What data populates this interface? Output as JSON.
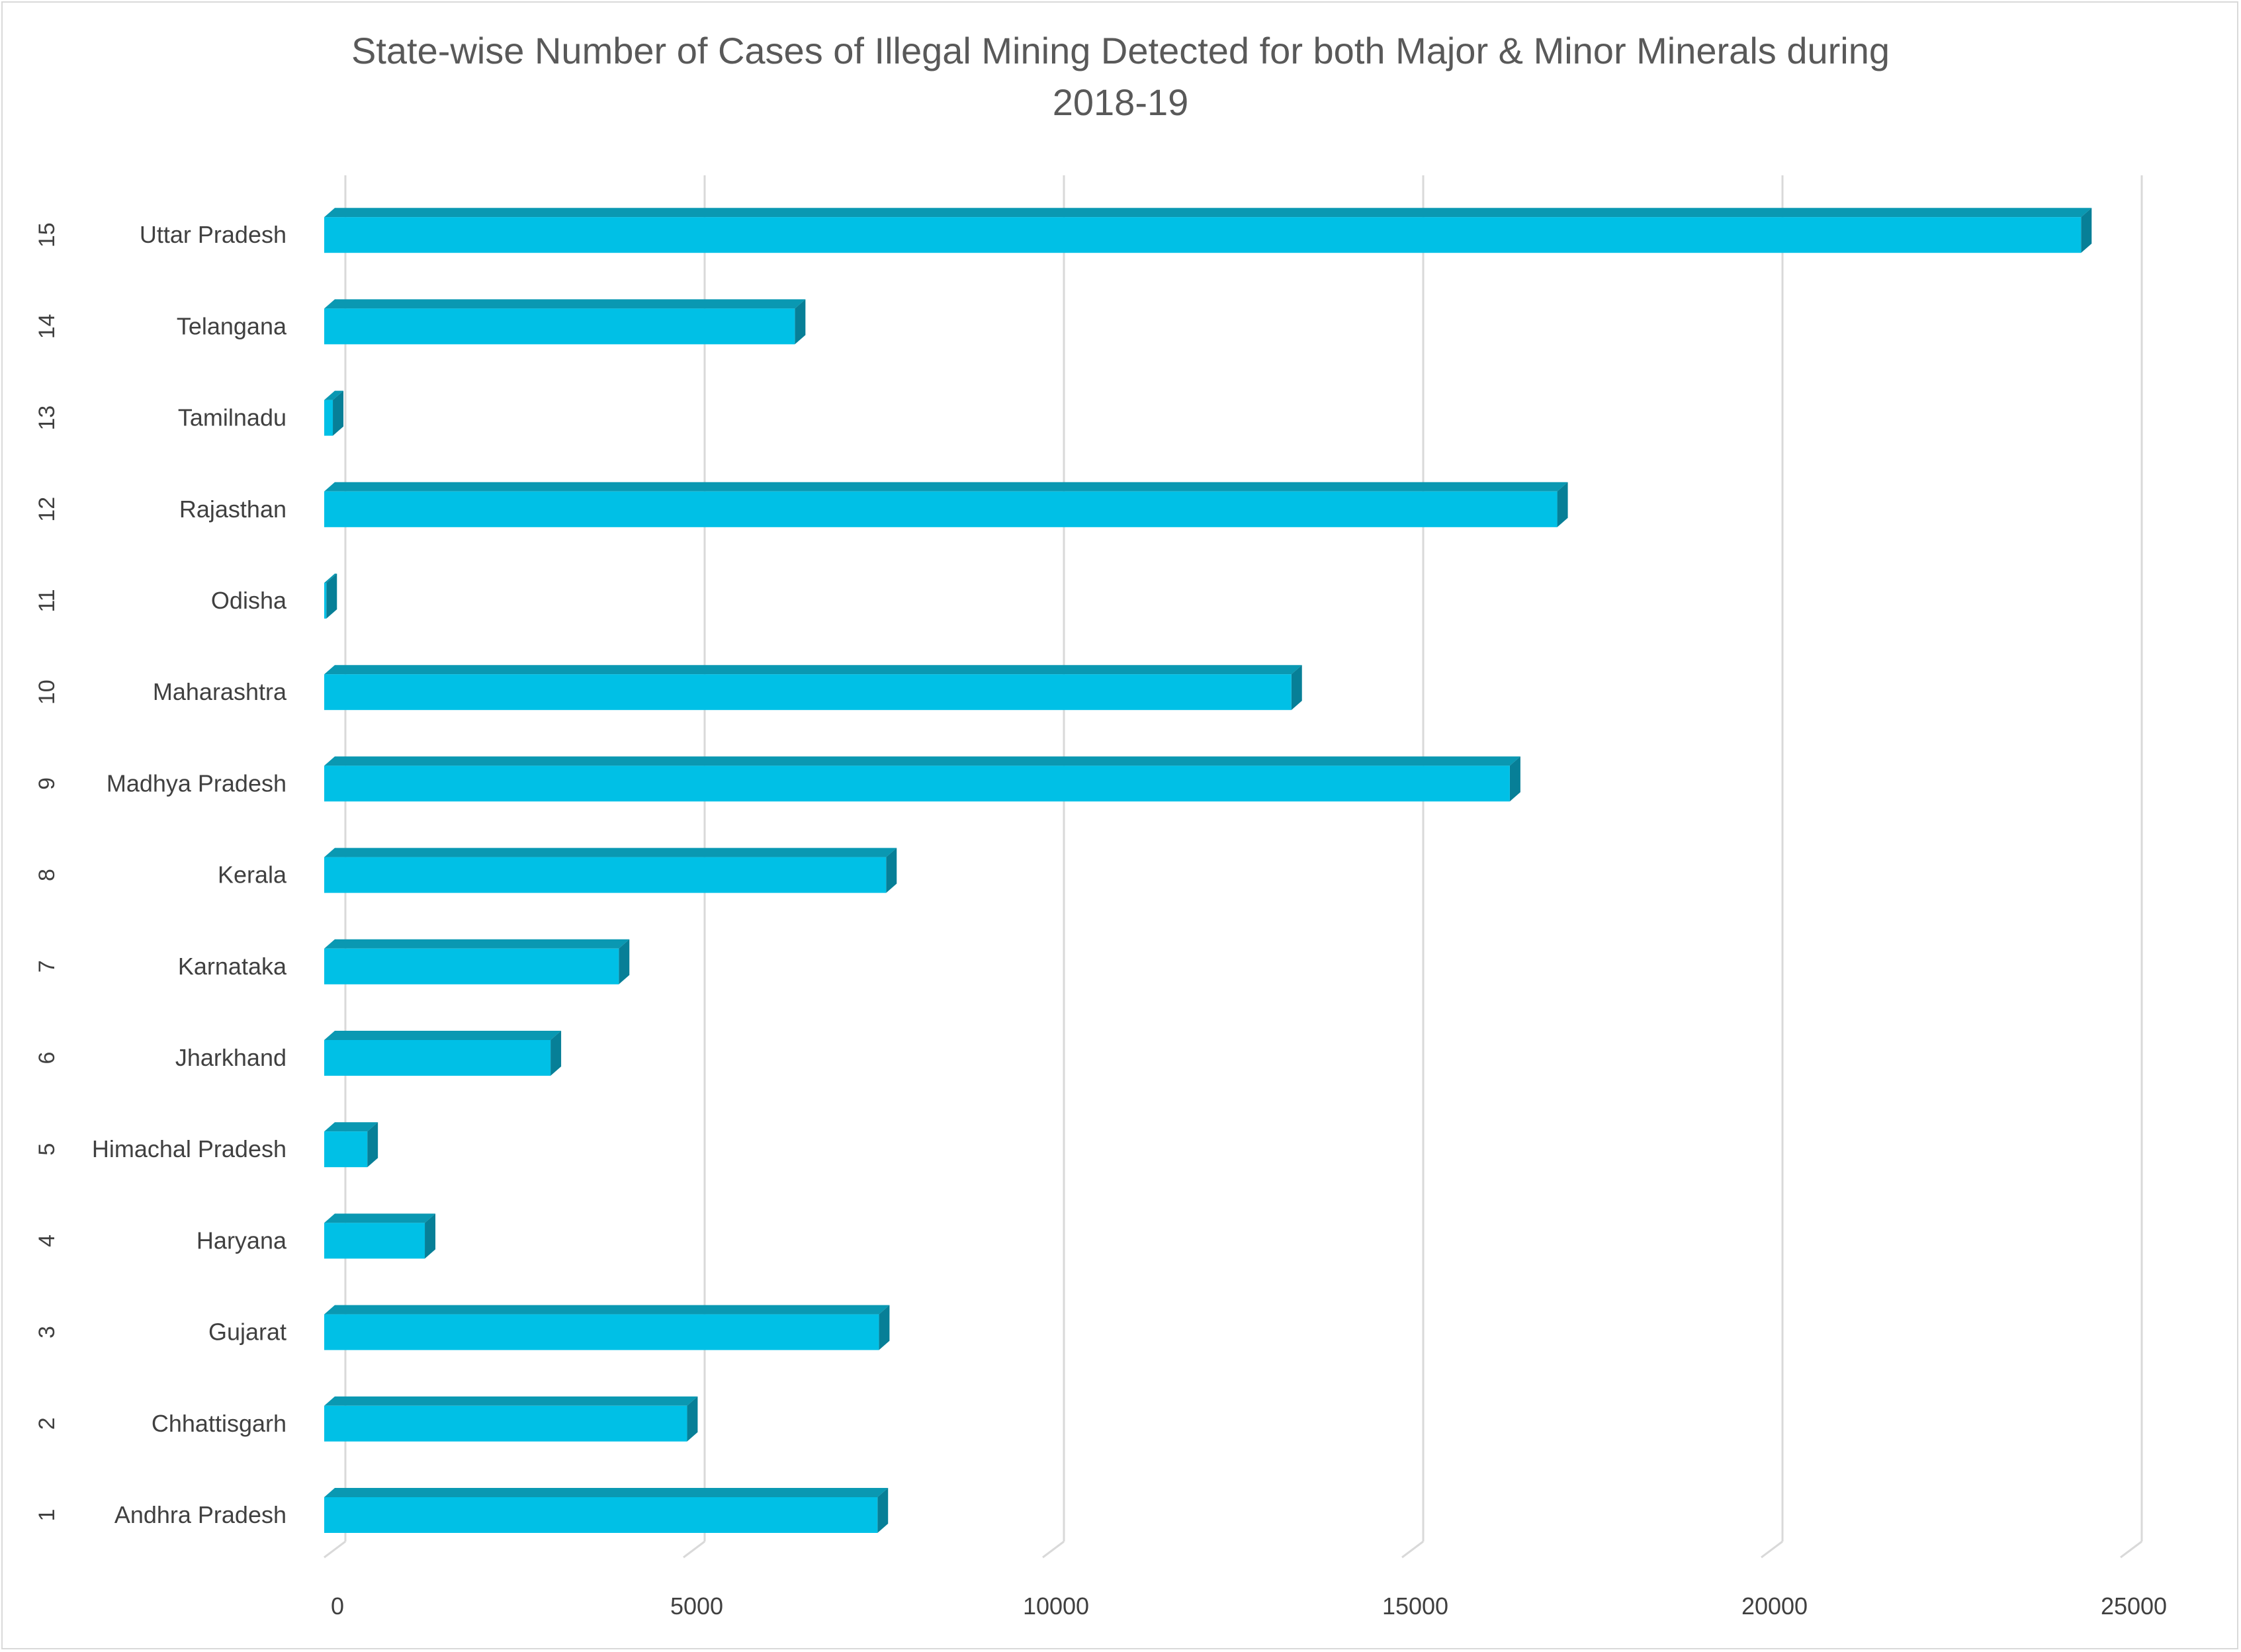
{
  "chart_data": {
    "type": "bar",
    "orientation": "horizontal",
    "title_lines": [
      "State-wise Number of Cases of Illegal Mining Detected for both Major & Minor Minerals during",
      "2018-19"
    ],
    "categories": [
      {
        "index": "1",
        "name": "Andhra Pradesh"
      },
      {
        "index": "2",
        "name": "Chhattisgarh"
      },
      {
        "index": "3",
        "name": "Gujarat"
      },
      {
        "index": "4",
        "name": "Haryana"
      },
      {
        "index": "5",
        "name": "Himachal Pradesh"
      },
      {
        "index": "6",
        "name": "Jharkhand"
      },
      {
        "index": "7",
        "name": "Karnataka"
      },
      {
        "index": "8",
        "name": "Kerala"
      },
      {
        "index": "9",
        "name": "Madhya Pradesh"
      },
      {
        "index": "10",
        "name": "Maharashtra"
      },
      {
        "index": "11",
        "name": "Odisha"
      },
      {
        "index": "12",
        "name": "Rajasthan"
      },
      {
        "index": "13",
        "name": "Tamilnadu"
      },
      {
        "index": "14",
        "name": "Telangana"
      },
      {
        "index": "15",
        "name": "Uttar Pradesh"
      }
    ],
    "values": [
      7700,
      5050,
      7720,
      1400,
      600,
      3150,
      4100,
      7820,
      16500,
      13460,
      30,
      17160,
      120,
      6550,
      24450
    ],
    "xlim": [
      0,
      25000
    ],
    "xticks": [
      "0",
      "5000",
      "10000",
      "15000",
      "20000",
      "25000"
    ],
    "grid": "vertical",
    "legend": "none",
    "colors": {
      "bar_front": "#00c0e6",
      "bar_top": "#0a98b2",
      "bar_side": "#077f97",
      "grid": "#d9d9d9"
    }
  }
}
